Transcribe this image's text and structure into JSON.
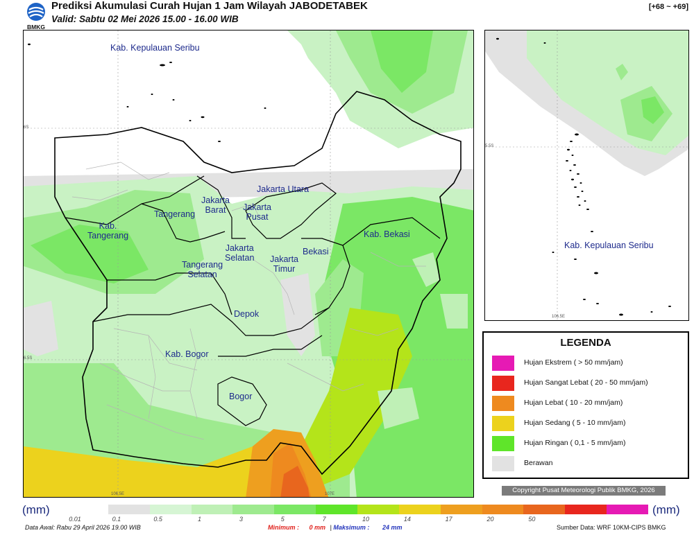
{
  "header": {
    "logo_text": "BMKG",
    "title": "Prediksi Akumulasi Curah Hujan 1 Jam Wilayah JABODETABEK",
    "valid": "Valid: Sabtu 02 Mei 2026 15.00 - 16.00 WIB",
    "code": "[+68 ~ +69]"
  },
  "map": {
    "regions": [
      {
        "id": "kab-kepulauan-seribu",
        "label": "Kab. Kepulauan Seribu"
      },
      {
        "id": "jakarta-utara",
        "label": "Jakarta Utara"
      },
      {
        "id": "jakarta-barat",
        "label": "Jakarta\nBarat"
      },
      {
        "id": "jakarta-pusat",
        "label": "Jakarta\nPusat"
      },
      {
        "id": "tangerang",
        "label": "Tangerang"
      },
      {
        "id": "kab-tangerang",
        "label": "Kab.\nTangerang"
      },
      {
        "id": "jakarta-selatan",
        "label": "Jakarta\nSelatan"
      },
      {
        "id": "jakarta-timur",
        "label": "Jakarta\nTimur"
      },
      {
        "id": "bekasi",
        "label": "Bekasi"
      },
      {
        "id": "kab-bekasi",
        "label": "Kab. Bekasi"
      },
      {
        "id": "tangerang-selatan",
        "label": "Tangerang\nSelatan"
      },
      {
        "id": "depok",
        "label": "Depok"
      },
      {
        "id": "kab-bogor",
        "label": "Kab. Bogor"
      },
      {
        "id": "bogor",
        "label": "Bogor"
      }
    ],
    "ticks": {
      "lat_6s": "6S",
      "lat_6_5s": "6.5S",
      "lon_106_5e": "106.5E",
      "lon_107e": "107E"
    }
  },
  "inset": {
    "label": "Kab. Kepulauan Seribu",
    "ticks": {
      "lat": "5.5S",
      "lon": "106.5E"
    }
  },
  "legend": {
    "title": "LEGENDA",
    "items": [
      {
        "label": "Hujan Ekstrem ( > 50 mm/jam)",
        "color": "#e61ab4"
      },
      {
        "label": "Hujan Sangat Lebat ( 20 - 50 mm/jam)",
        "color": "#e8261e"
      },
      {
        "label": "Hujan Lebat ( 10 - 20 mm/jam)",
        "color": "#ee8a1f"
      },
      {
        "label": "Hujan Sedang ( 5 - 10 mm/jam)",
        "color": "#ecd21d"
      },
      {
        "label": "Hujan Ringan ( 0,1 - 5 mm/jam)",
        "color": "#5fe52a"
      },
      {
        "label": "Berawan",
        "color": "#e2e2e2"
      }
    ]
  },
  "copyright": "Copyright Pusat Meteorologi Publik BMKG, 2026",
  "colorbar": {
    "unit": "(mm)",
    "labels": [
      "0.01",
      "0.1",
      "0.5",
      "1",
      "3",
      "5",
      "7",
      "10",
      "14",
      "17",
      "20",
      "50"
    ],
    "colors": [
      "#ffffff",
      "#e2e2e2",
      "#d6f5d4",
      "#bff0b6",
      "#9eea8f",
      "#7be765",
      "#5fe52a",
      "#b4e41a",
      "#ecd21d",
      "#ee9f1f",
      "#ee8a1f",
      "#e8661e",
      "#e8261e",
      "#e61ab4"
    ]
  },
  "footer": {
    "data_awal": "Data Awal: Rabu 29 April 2026 19.00 WIB",
    "minimum_label": "Minimum :",
    "minimum_value": "0 mm",
    "separator": "|",
    "maximum_label": "Maksimum :",
    "maximum_value": "24 mm",
    "source": "Sumber Data: WRF 10KM-CIPS BMKG"
  }
}
